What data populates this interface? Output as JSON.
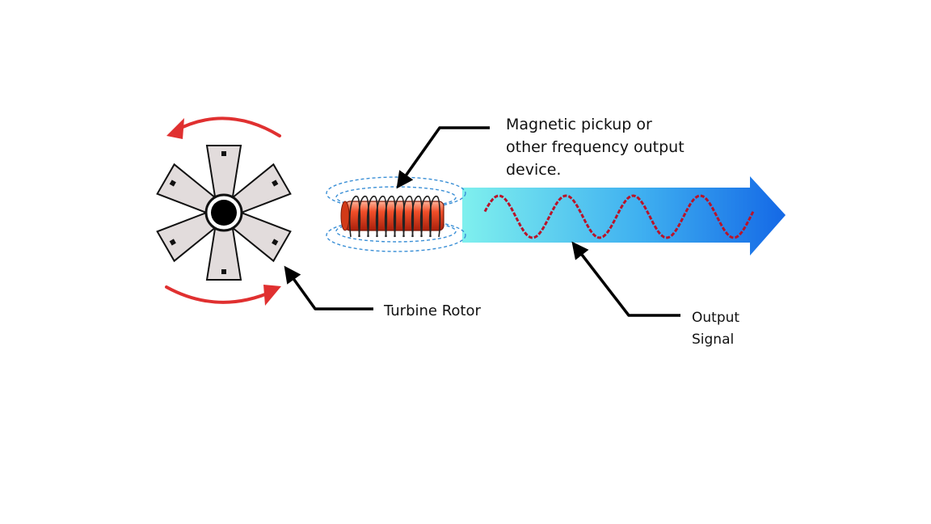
{
  "labels": {
    "pickup": [
      "Magnetic pickup or",
      "other frequency output",
      "device."
    ],
    "rotor": "Turbine Rotor",
    "signal": [
      "Output",
      "Signal"
    ]
  },
  "colors": {
    "rotation_arrows": "#e03030",
    "blade_fill": "#e2dcdc",
    "coil_body": "#e8431c",
    "field_lines": "#3a8fd6",
    "flow_arrow_start": "#7ff0ee",
    "flow_arrow_end": "#1468e6",
    "signal_wave": "#b8142a",
    "leader_lines": "#000000"
  },
  "icons": [
    "turbine-rotor-icon",
    "rotation-arrow-icon",
    "magnetic-coil-icon",
    "flow-arrow-icon",
    "sine-wave-icon"
  ]
}
